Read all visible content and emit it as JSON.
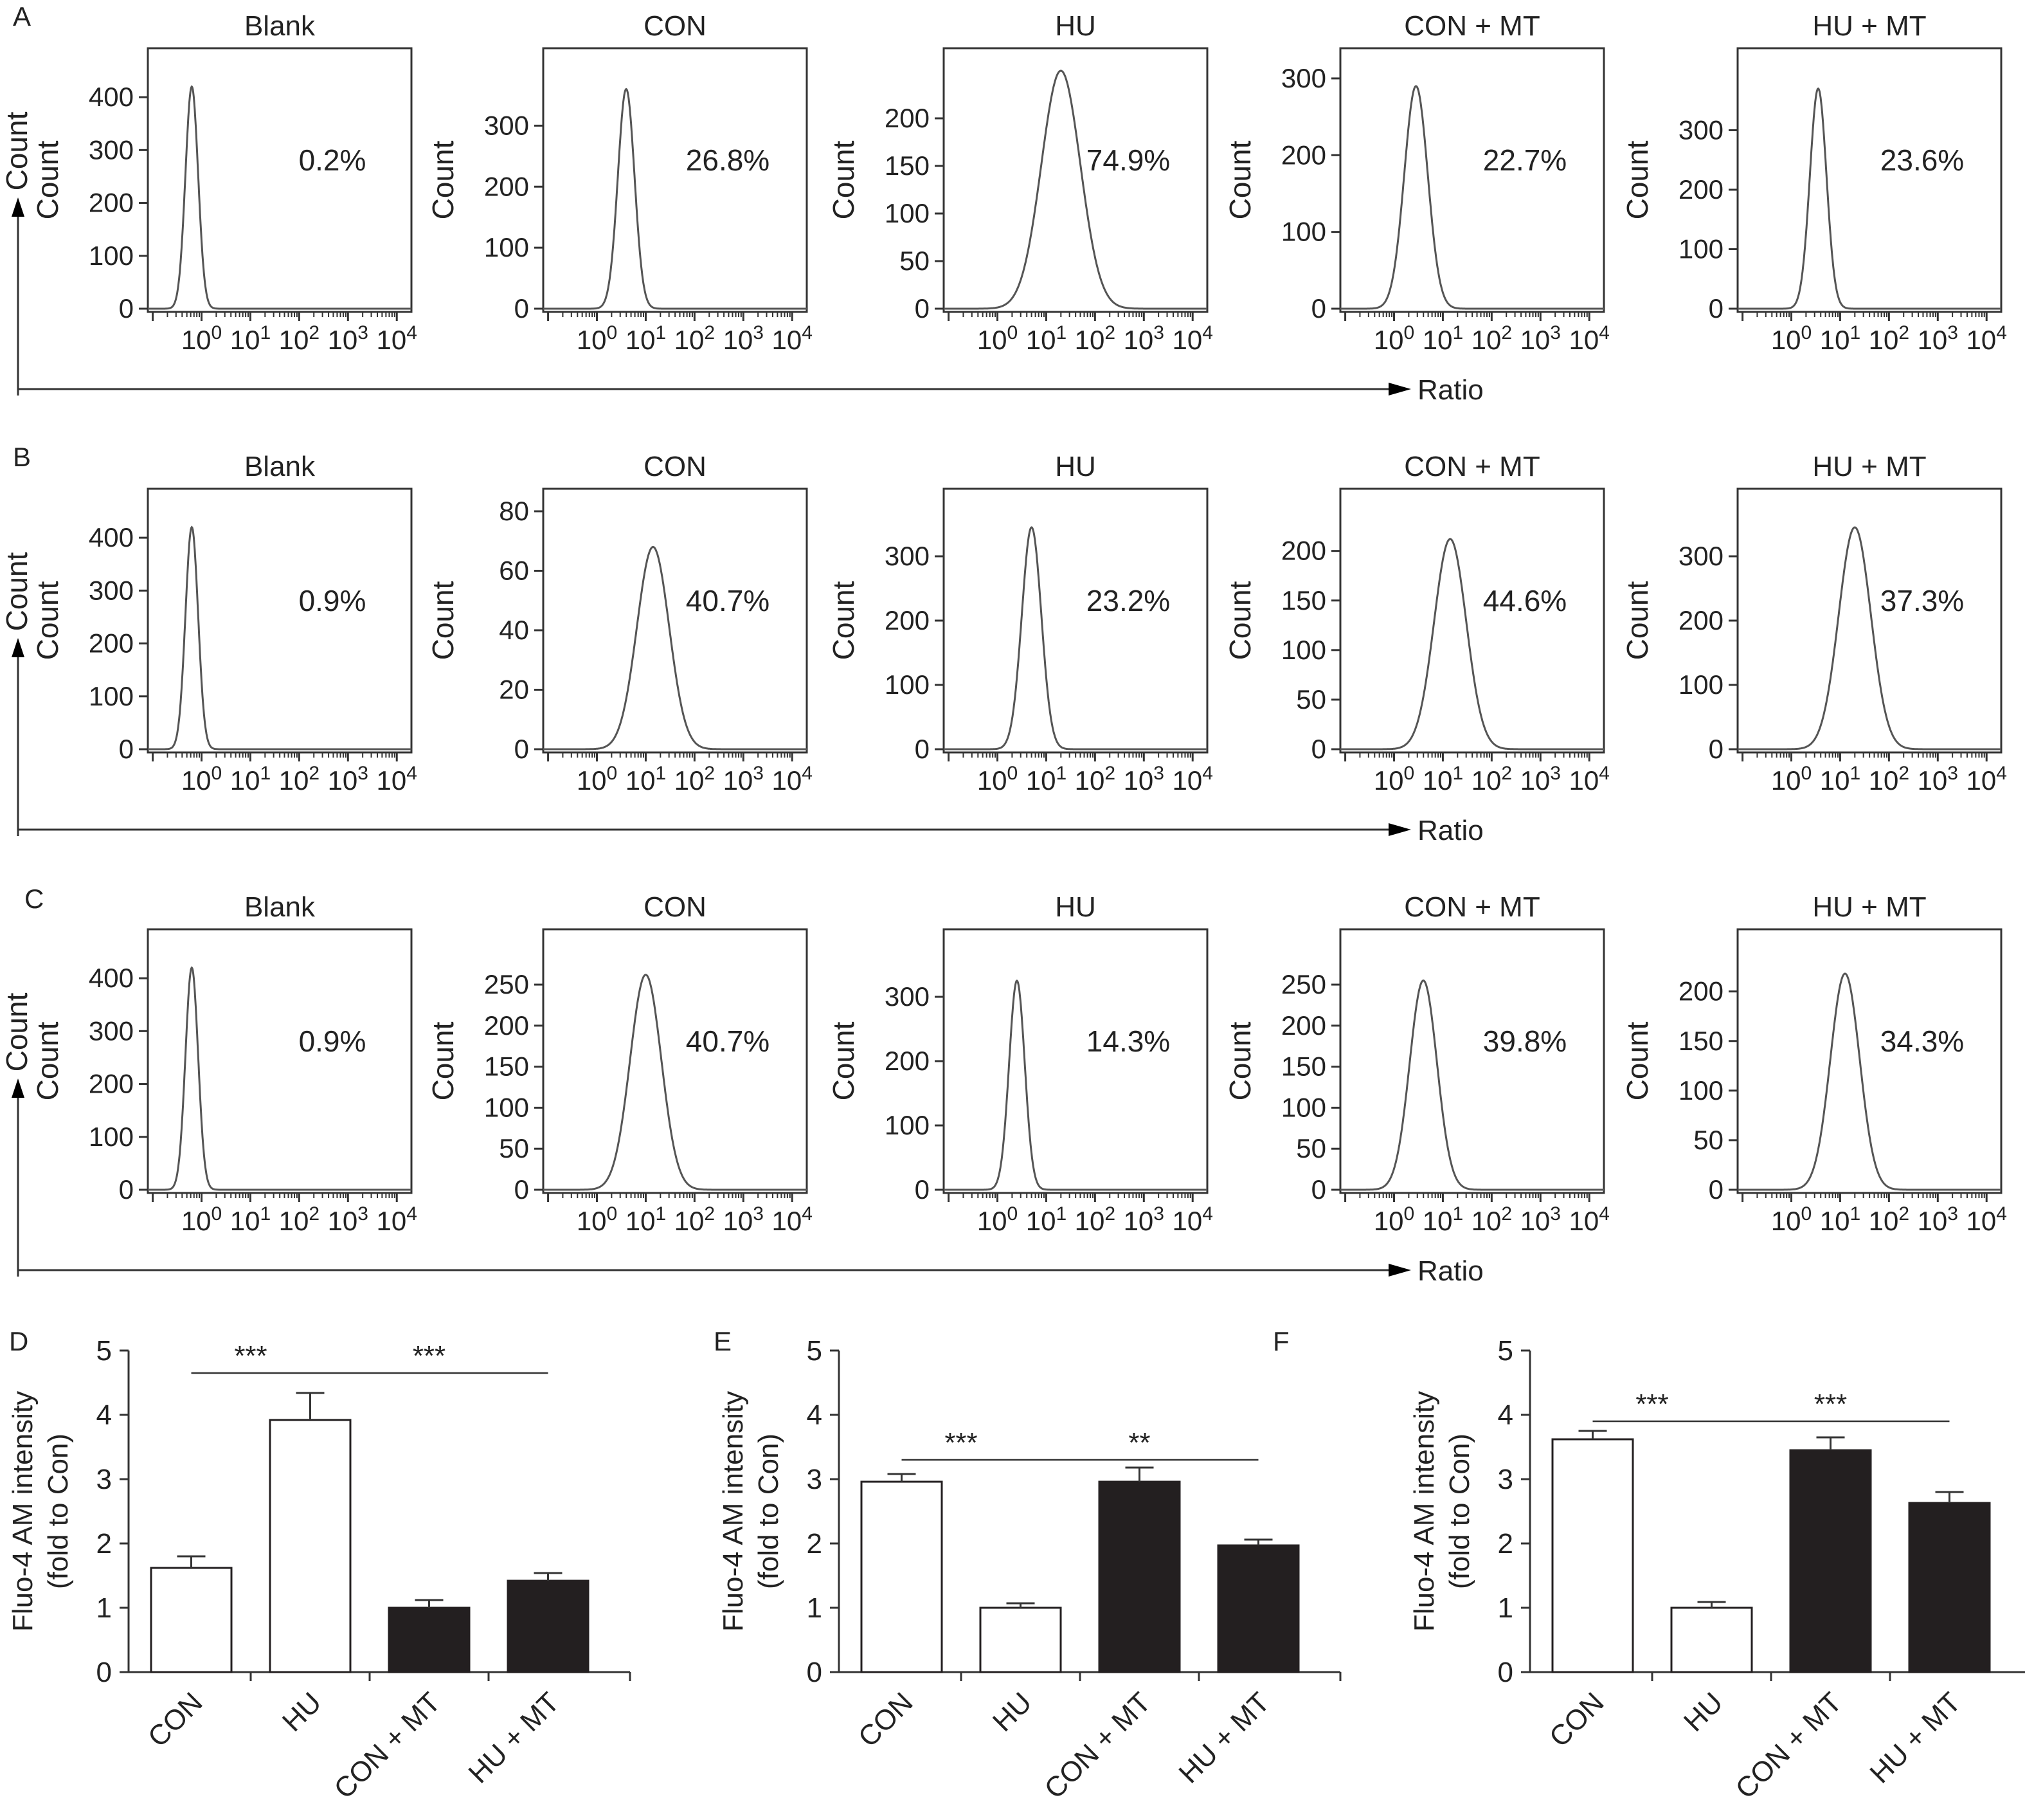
{
  "chart_data": [
    {
      "type": "histogram-row",
      "panel": "A",
      "count_label": "Count",
      "x_axis_label": "Ratio",
      "panels": [
        {
          "title": "Blank",
          "ylabel": "Count",
          "yticks": [
            0,
            100,
            200,
            300,
            400
          ],
          "ymax": 450,
          "xticks": [
            "0",
            "1",
            "2",
            "3",
            "4"
          ],
          "percent": "0.2%",
          "peak_log10": -0.2,
          "peak_count": 420,
          "width_log10": 0.13
        },
        {
          "title": "CON",
          "ylabel": "Count",
          "yticks": [
            0,
            100,
            200,
            300
          ],
          "ymax": 390,
          "xticks": [
            "0",
            "1",
            "2",
            "3",
            "4"
          ],
          "percent": "26.8%",
          "peak_log10": 0.6,
          "peak_count": 360,
          "width_log10": 0.17
        },
        {
          "title": "HU",
          "ylabel": "Count",
          "yticks": [
            0,
            50,
            100,
            150,
            200
          ],
          "ymax": 250,
          "xticks": [
            "0",
            "1",
            "2",
            "3",
            "4"
          ],
          "percent": "74.9%",
          "peak_log10": 1.3,
          "peak_count": 250,
          "width_log10": 0.4
        },
        {
          "title": "CON + MT",
          "ylabel": "Count",
          "yticks": [
            0,
            100,
            200,
            300
          ],
          "ymax": 310,
          "xticks": [
            "0",
            "1",
            "2",
            "3",
            "4"
          ],
          "percent": "22.7%",
          "peak_log10": 0.45,
          "peak_count": 290,
          "width_log10": 0.24
        },
        {
          "title": "HU + MT",
          "ylabel": "Count",
          "yticks": [
            0,
            100,
            200,
            300
          ],
          "ymax": 400,
          "xticks": [
            "0",
            "1",
            "2",
            "3",
            "4"
          ],
          "percent": "23.6%",
          "peak_log10": 0.55,
          "peak_count": 370,
          "width_log10": 0.17
        }
      ]
    },
    {
      "type": "histogram-row",
      "panel": "B",
      "count_label": "Count",
      "x_axis_label": "Ratio",
      "panels": [
        {
          "title": "Blank",
          "ylabel": "Count",
          "yticks": [
            0,
            100,
            200,
            300,
            400
          ],
          "ymax": 450,
          "xticks": [
            "0",
            "1",
            "2",
            "3",
            "4"
          ],
          "percent": "0.9%",
          "peak_log10": -0.2,
          "peak_count": 420,
          "width_log10": 0.13
        },
        {
          "title": "CON",
          "ylabel": "Count",
          "yticks": [
            0,
            20,
            40,
            60,
            80
          ],
          "ymax": 80,
          "xticks": [
            "0",
            "1",
            "2",
            "3",
            "4"
          ],
          "percent": "40.7%",
          "peak_log10": 1.15,
          "peak_count": 68,
          "width_log10": 0.33
        },
        {
          "title": "HU",
          "ylabel": "Count",
          "yticks": [
            0,
            100,
            200,
            300
          ],
          "ymax": 370,
          "xticks": [
            "0",
            "1",
            "2",
            "3",
            "4"
          ],
          "percent": "23.2%",
          "peak_log10": 0.7,
          "peak_count": 345,
          "width_log10": 0.2
        },
        {
          "title": "CON + MT",
          "ylabel": "Count",
          "yticks": [
            0,
            50,
            100,
            150,
            200
          ],
          "ymax": 240,
          "xticks": [
            "0",
            "1",
            "2",
            "3",
            "4"
          ],
          "percent": "44.6%",
          "peak_log10": 1.15,
          "peak_count": 212,
          "width_log10": 0.33
        },
        {
          "title": "HU + MT",
          "ylabel": "Count",
          "yticks": [
            0,
            100,
            200,
            300
          ],
          "ymax": 370,
          "xticks": [
            "0",
            "1",
            "2",
            "3",
            "4"
          ],
          "percent": "37.3%",
          "peak_log10": 1.3,
          "peak_count": 345,
          "width_log10": 0.33
        }
      ]
    },
    {
      "type": "histogram-row",
      "panel": "C",
      "count_label": "Count",
      "x_axis_label": "Ratio",
      "panels": [
        {
          "title": "Blank",
          "ylabel": "Count",
          "yticks": [
            0,
            100,
            200,
            300,
            400
          ],
          "ymax": 450,
          "xticks": [
            "0",
            "1",
            "2",
            "3",
            "4"
          ],
          "percent": "0.9%",
          "peak_log10": -0.2,
          "peak_count": 420,
          "width_log10": 0.13
        },
        {
          "title": "CON",
          "ylabel": "Count",
          "yticks": [
            0,
            50,
            100,
            150,
            200,
            250
          ],
          "ymax": 290,
          "xticks": [
            "0",
            "1",
            "2",
            "3",
            "4"
          ],
          "percent": "40.7%",
          "peak_log10": 1.0,
          "peak_count": 262,
          "width_log10": 0.32
        },
        {
          "title": "HU",
          "ylabel": "Count",
          "yticks": [
            0,
            100,
            200,
            300
          ],
          "ymax": 370,
          "xticks": [
            "0",
            "1",
            "2",
            "3",
            "4"
          ],
          "percent": "14.3%",
          "peak_log10": 0.4,
          "peak_count": 325,
          "width_log10": 0.16
        },
        {
          "title": "CON + MT",
          "ylabel": "Count",
          "yticks": [
            0,
            50,
            100,
            150,
            200,
            250
          ],
          "ymax": 290,
          "xticks": [
            "0",
            "1",
            "2",
            "3",
            "4"
          ],
          "percent": "39.8%",
          "peak_log10": 0.6,
          "peak_count": 255,
          "width_log10": 0.28
        },
        {
          "title": "HU + MT",
          "ylabel": "Count",
          "yticks": [
            0,
            50,
            100,
            150,
            200
          ],
          "ymax": 240,
          "xticks": [
            "0",
            "1",
            "2",
            "3",
            "4"
          ],
          "percent": "34.3%",
          "peak_log10": 1.1,
          "peak_count": 218,
          "width_log10": 0.3
        }
      ]
    },
    {
      "type": "bar",
      "panel": "D",
      "categories": [
        "CON",
        "HU",
        "CON + MT",
        "HU + MT"
      ],
      "values": [
        1.62,
        3.92,
        1.0,
        1.42
      ],
      "errors": [
        0.18,
        0.42,
        0.12,
        0.12
      ],
      "fills": [
        "#ffffff",
        "#ffffff",
        "#231f20",
        "#231f20"
      ],
      "ylabel": "Fluo-4 AM intensity",
      "ylabel2": "(fold to Con)",
      "ylim": [
        0,
        5
      ],
      "yticks": [
        0,
        1,
        2,
        3,
        4,
        5
      ],
      "significance": [
        {
          "from": 0,
          "to": 1,
          "label": "***",
          "y": 4.65
        },
        {
          "from": 1,
          "to": 3,
          "label": "***",
          "y": 4.65
        }
      ]
    },
    {
      "type": "bar",
      "panel": "E",
      "categories": [
        "CON",
        "HU",
        "CON + MT",
        "HU + MT"
      ],
      "values": [
        2.96,
        1.0,
        2.96,
        1.97
      ],
      "errors": [
        0.12,
        0.07,
        0.22,
        0.09
      ],
      "fills": [
        "#ffffff",
        "#ffffff",
        "#231f20",
        "#231f20"
      ],
      "ylabel": "Fluo-4 AM intensity",
      "ylabel2": "(fold to Con)",
      "ylim": [
        0,
        5
      ],
      "yticks": [
        0,
        1,
        2,
        3,
        4,
        5
      ],
      "significance": [
        {
          "from": 0,
          "to": 1,
          "label": "***",
          "y": 3.3
        },
        {
          "from": 1,
          "to": 3,
          "label": "**",
          "y": 3.3
        }
      ]
    },
    {
      "type": "bar",
      "panel": "F",
      "categories": [
        "CON",
        "HU",
        "CON + MT",
        "HU + MT"
      ],
      "values": [
        3.62,
        1.0,
        3.45,
        2.63
      ],
      "errors": [
        0.13,
        0.09,
        0.2,
        0.17
      ],
      "fills": [
        "#ffffff",
        "#ffffff",
        "#231f20",
        "#231f20"
      ],
      "ylabel": "Fluo-4 AM intensity",
      "ylabel2": "(fold to Con)",
      "ylim": [
        0,
        5
      ],
      "yticks": [
        0,
        1,
        2,
        3,
        4,
        5
      ],
      "significance": [
        {
          "from": 0,
          "to": 1,
          "label": "***",
          "y": 3.9
        },
        {
          "from": 1,
          "to": 3,
          "label": "***",
          "y": 3.9
        }
      ]
    }
  ]
}
